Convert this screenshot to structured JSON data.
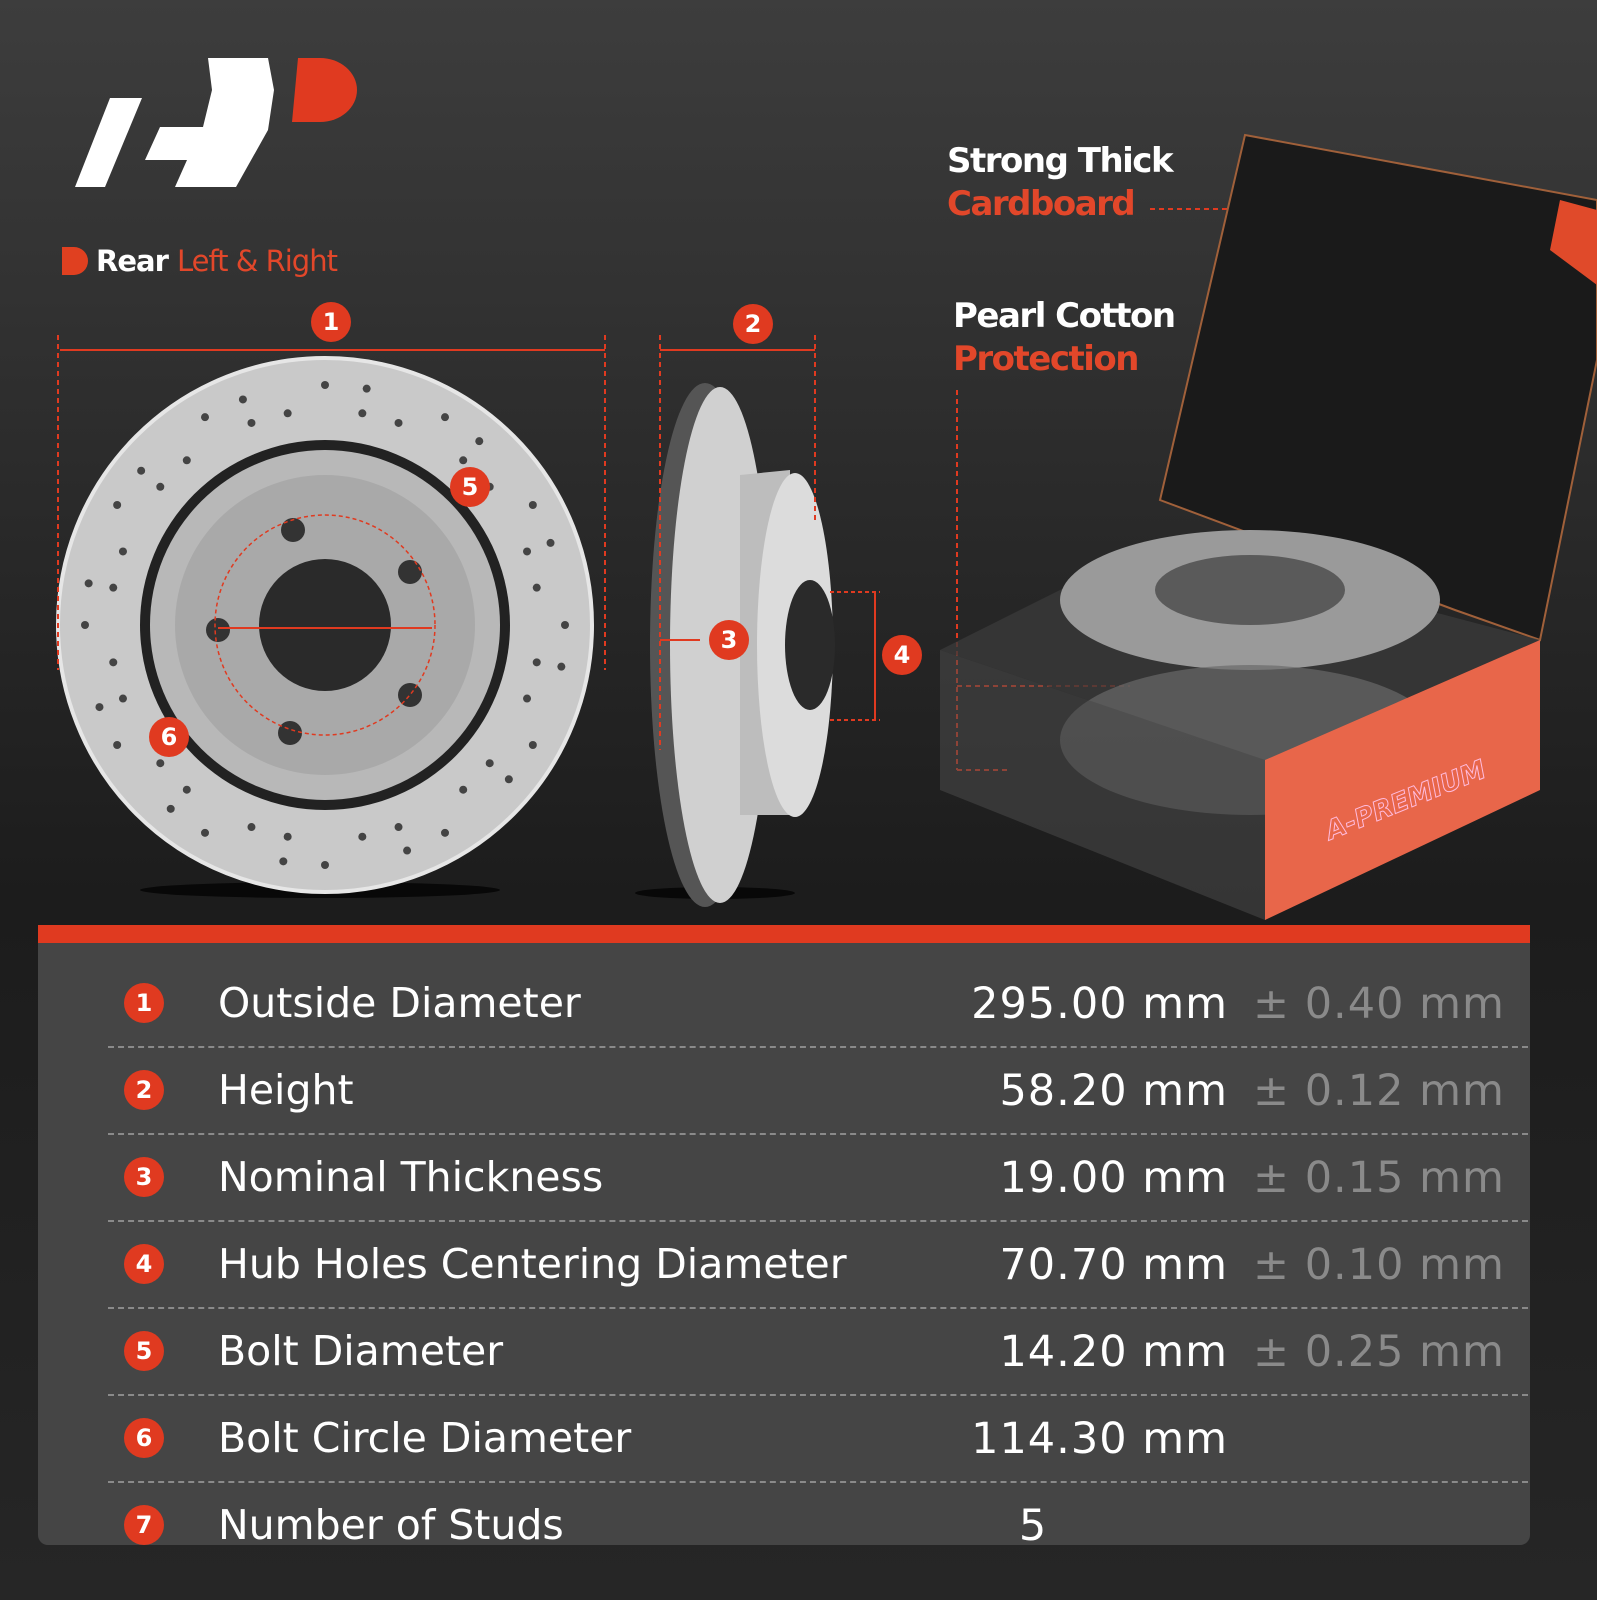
{
  "brand": {
    "logo": "A-Premium AP logo",
    "watermark": "A-PREMIUM"
  },
  "subtitle": {
    "part1": "Rear",
    "part2": "Left & Right"
  },
  "callouts": {
    "cardboard": {
      "line1": "Strong Thick",
      "line2": "Cardboard"
    },
    "cotton": {
      "line1": "Pearl Cotton",
      "line2": "Protection"
    }
  },
  "markers": [
    "1",
    "2",
    "3",
    "4",
    "5",
    "6"
  ],
  "colors": {
    "accent": "#e03a20",
    "background": "#2a2a2a",
    "panel": "#454545"
  },
  "specs": [
    {
      "num": "1",
      "label": "Outside Diameter",
      "value": "295.00 mm",
      "tolerance": "± 0.40 mm"
    },
    {
      "num": "2",
      "label": "Height",
      "value": "58.20 mm",
      "tolerance": "± 0.12 mm"
    },
    {
      "num": "3",
      "label": "Nominal Thickness",
      "value": "19.00 mm",
      "tolerance": "± 0.15 mm"
    },
    {
      "num": "4",
      "label": "Hub Holes Centering Diameter",
      "value": "70.70 mm",
      "tolerance": "± 0.10 mm"
    },
    {
      "num": "5",
      "label": "Bolt Diameter",
      "value": "14.20 mm",
      "tolerance": "± 0.25 mm"
    },
    {
      "num": "6",
      "label": "Bolt Circle Diameter",
      "value": "114.30 mm",
      "tolerance": ""
    },
    {
      "num": "7",
      "label": "Number of Studs",
      "value": "5",
      "tolerance": ""
    }
  ]
}
